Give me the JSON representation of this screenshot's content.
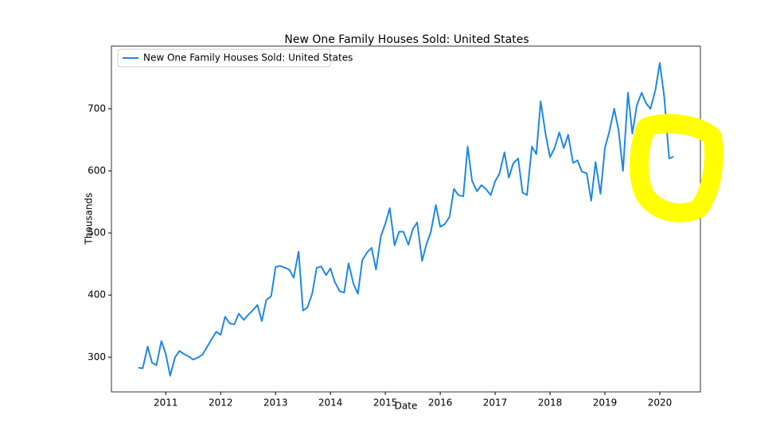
{
  "chart_data": {
    "type": "line",
    "title": "New One Family Houses Sold: United States",
    "xlabel": "Date",
    "ylabel": "Thousands",
    "x": [
      2010.5,
      2010.58,
      2010.67,
      2010.75,
      2010.83,
      2010.92,
      2011.0,
      2011.08,
      2011.17,
      2011.25,
      2011.33,
      2011.42,
      2011.5,
      2011.58,
      2011.67,
      2011.75,
      2011.83,
      2011.92,
      2012.0,
      2012.08,
      2012.17,
      2012.25,
      2012.33,
      2012.42,
      2012.5,
      2012.58,
      2012.67,
      2012.75,
      2012.83,
      2012.92,
      2013.0,
      2013.08,
      2013.17,
      2013.25,
      2013.33,
      2013.42,
      2013.5,
      2013.58,
      2013.67,
      2013.75,
      2013.83,
      2013.92,
      2014.0,
      2014.08,
      2014.17,
      2014.25,
      2014.33,
      2014.42,
      2014.5,
      2014.58,
      2014.67,
      2014.75,
      2014.83,
      2014.92,
      2015.0,
      2015.08,
      2015.17,
      2015.25,
      2015.33,
      2015.42,
      2015.5,
      2015.58,
      2015.67,
      2015.75,
      2015.83,
      2015.92,
      2016.0,
      2016.08,
      2016.17,
      2016.25,
      2016.33,
      2016.42,
      2016.5,
      2016.58,
      2016.67,
      2016.75,
      2016.83,
      2016.92,
      2017.0,
      2017.08,
      2017.17,
      2017.25,
      2017.33,
      2017.42,
      2017.5,
      2017.58,
      2017.67,
      2017.75,
      2017.83,
      2017.92,
      2018.0,
      2018.08,
      2018.17,
      2018.25,
      2018.33,
      2018.42,
      2018.5,
      2018.58,
      2018.67,
      2018.75,
      2018.83,
      2018.92,
      2019.0,
      2019.08,
      2019.17,
      2019.25,
      2019.33,
      2019.42,
      2019.5,
      2019.58,
      2019.67,
      2019.75,
      2019.83,
      2019.92,
      2020.0,
      2020.08,
      2020.17,
      2020.25
    ],
    "series": [
      {
        "name": "New One Family Houses Sold: United States",
        "color": "#1e88e5",
        "values": [
          283,
          282,
          317,
          291,
          287,
          326,
          305,
          270,
          300,
          310,
          305,
          301,
          296,
          299,
          304,
          316,
          328,
          341,
          336,
          365,
          354,
          353,
          370,
          360,
          368,
          375,
          384,
          358,
          392,
          398,
          445,
          447,
          444,
          441,
          428,
          470,
          375,
          380,
          403,
          444,
          446,
          432,
          443,
          421,
          406,
          404,
          451,
          418,
          402,
          456,
          469,
          476,
          441,
          495,
          515,
          540,
          480,
          502,
          502,
          481,
          506,
          517,
          455,
          482,
          502,
          545,
          510,
          514,
          526,
          571,
          561,
          559,
          639,
          584,
          567,
          577,
          571,
          561,
          583,
          596,
          630,
          589,
          612,
          620,
          565,
          561,
          639,
          627,
          712,
          659,
          622,
          636,
          662,
          637,
          658,
          613,
          617,
          599,
          596,
          552,
          614,
          563,
          637,
          663,
          700,
          665,
          600,
          726,
          660,
          705,
          726,
          709,
          700,
          730,
          774,
          720,
          620,
          623
        ]
      }
    ],
    "xlim": [
      2010.01,
      2020.74
    ],
    "xticks": [
      2011,
      2012,
      2013,
      2014,
      2015,
      2016,
      2017,
      2018,
      2019,
      2020
    ],
    "ylim": [
      244,
      801
    ],
    "yticks": [
      300,
      400,
      500,
      600,
      700
    ],
    "legend": "upper left"
  }
}
